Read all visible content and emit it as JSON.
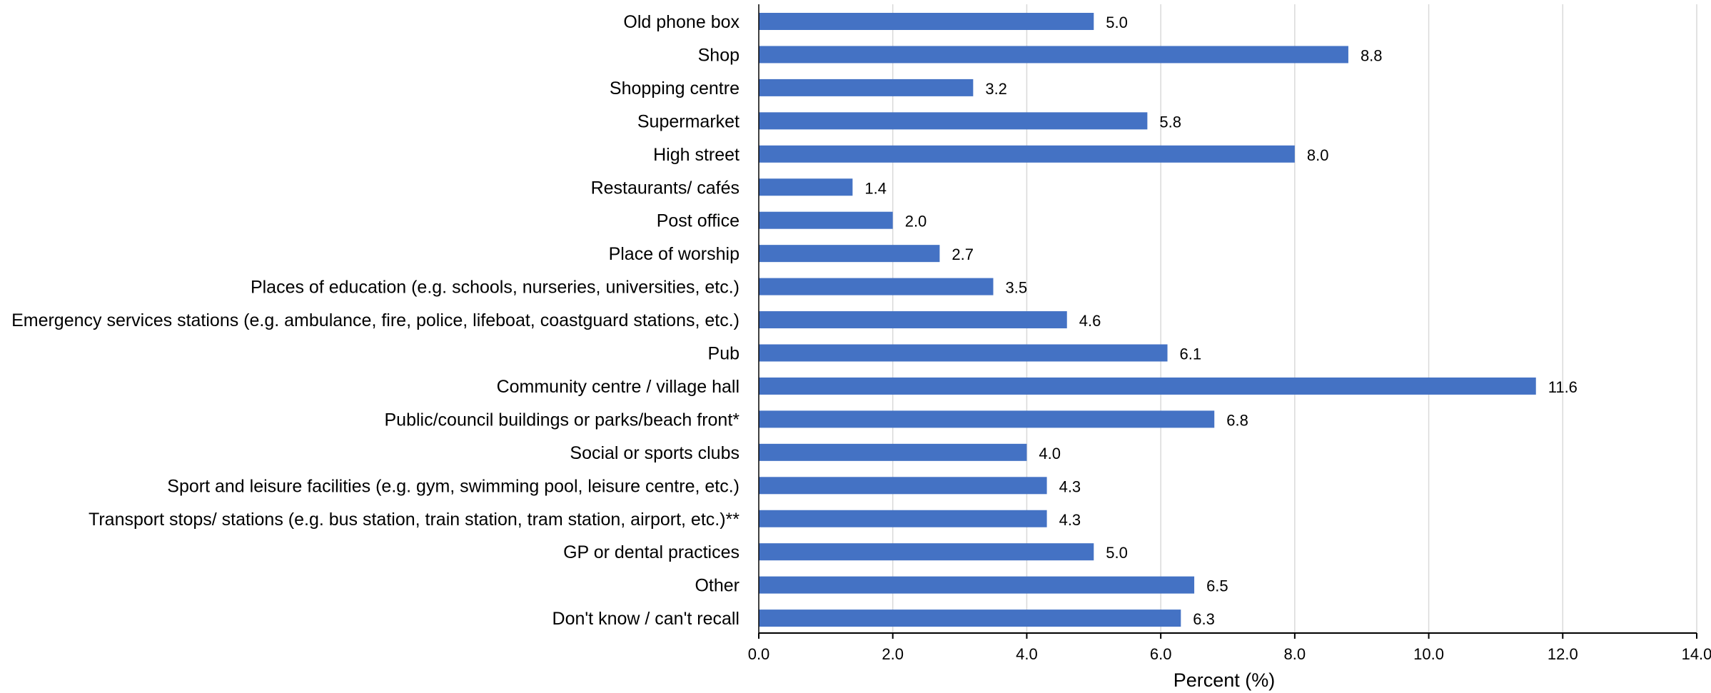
{
  "chart_data": {
    "type": "bar",
    "orientation": "horizontal",
    "categories": [
      "Old phone box",
      "Shop",
      "Shopping centre",
      "Supermarket",
      "High street",
      "Restaurants/ cafés",
      "Post office",
      "Place of worship",
      "Places of education (e.g. schools, nurseries, universities, etc.)",
      "Emergency services stations (e.g. ambulance, fire, police, lifeboat, coastguard stations, etc.)",
      "Pub",
      "Community centre / village hall",
      "Public/council buildings or parks/beach front*",
      "Social or sports clubs",
      "Sport and leisure facilities (e.g. gym, swimming pool, leisure centre, etc.)",
      "Transport stops/ stations (e.g. bus station, train station, tram station, airport, etc.)**",
      "GP or dental practices",
      "Other",
      "Don't know / can't recall"
    ],
    "values": [
      5.0,
      8.8,
      3.2,
      5.8,
      8.0,
      1.4,
      2.0,
      2.7,
      3.5,
      4.6,
      6.1,
      11.6,
      6.8,
      4.0,
      4.3,
      4.3,
      5.0,
      6.5,
      6.3
    ],
    "value_labels": [
      "5.0",
      "8.8",
      "3.2",
      "5.8",
      "8.0",
      "1.4",
      "2.0",
      "2.7",
      "3.5",
      "4.6",
      "6.1",
      "11.6",
      "6.8",
      "4.0",
      "4.3",
      "4.3",
      "5.0",
      "6.5",
      "6.3"
    ],
    "xlabel": "Percent (%)",
    "xlim": [
      0,
      14
    ],
    "xticks": [
      0,
      2,
      4,
      6,
      8,
      10,
      12,
      14
    ],
    "xtick_labels": [
      "0.0",
      "2.0",
      "4.0",
      "6.0",
      "8.0",
      "10.0",
      "12.0",
      "14.0"
    ],
    "grid": "vertical",
    "legend": "none",
    "bar_color": "#4472C4",
    "grid_color": "#D9D9D9",
    "axis_color": "#000000"
  }
}
